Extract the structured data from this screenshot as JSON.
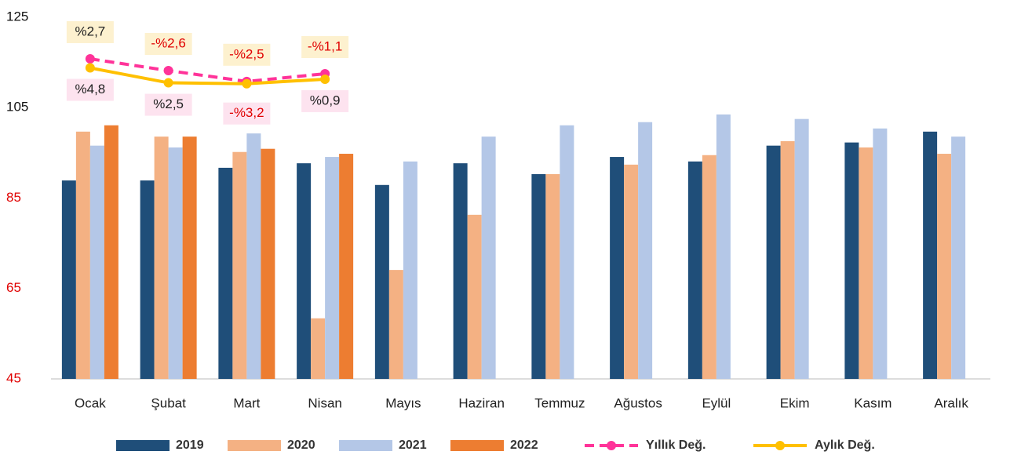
{
  "chart_data": {
    "type": "bar",
    "categories": [
      "Ocak",
      "Şubat",
      "Mart",
      "Nisan",
      "Mayıs",
      "Haziran",
      "Temmuz",
      "Ağustos",
      "Eylül",
      "Ekim",
      "Kasım",
      "Aralık"
    ],
    "series": [
      {
        "name": "2019",
        "color": "#1f4e79",
        "values": [
          88.9,
          88.9,
          91.7,
          92.7,
          87.9,
          92.7,
          90.3,
          94.1,
          93.1,
          96.6,
          97.3,
          99.7
        ]
      },
      {
        "name": "2020",
        "color": "#f4b183",
        "values": [
          99.7,
          98.6,
          95.2,
          58.4,
          69.1,
          81.3,
          90.3,
          92.4,
          94.5,
          97.6,
          96.2,
          94.8
        ]
      },
      {
        "name": "2021",
        "color": "#b4c7e7",
        "values": [
          96.6,
          96.2,
          99.3,
          94.1,
          93.1,
          98.6,
          101.1,
          101.8,
          103.5,
          102.5,
          100.4,
          98.6
        ]
      },
      {
        "name": "2022",
        "color": "#ed7d31",
        "values": [
          101.1,
          98.6,
          95.9,
          94.8,
          null,
          null,
          null,
          null,
          null,
          null,
          null,
          null
        ]
      },
      {
        "name": "Yıllık Değ.",
        "type": "line",
        "dashed": true,
        "color": "#ff3399",
        "values": [
          115.8,
          113.2,
          110.8,
          112.5,
          null,
          null,
          null,
          null,
          null,
          null,
          null,
          null
        ],
        "annotations": [
          "%2,7",
          "-%2,6",
          "-%2,5",
          "-%1,1"
        ]
      },
      {
        "name": "Aylık Değ.",
        "type": "line",
        "dashed": false,
        "color": "#ffc000",
        "values": [
          113.8,
          110.5,
          110.3,
          111.3,
          null,
          null,
          null,
          null,
          null,
          null,
          null,
          null
        ],
        "annotations": [
          "%4,8",
          "%2,5",
          "-%3,2",
          "%0,9"
        ]
      }
    ],
    "ylim": [
      45,
      125
    ],
    "yticks": [
      45,
      65,
      85,
      105,
      125
    ]
  }
}
